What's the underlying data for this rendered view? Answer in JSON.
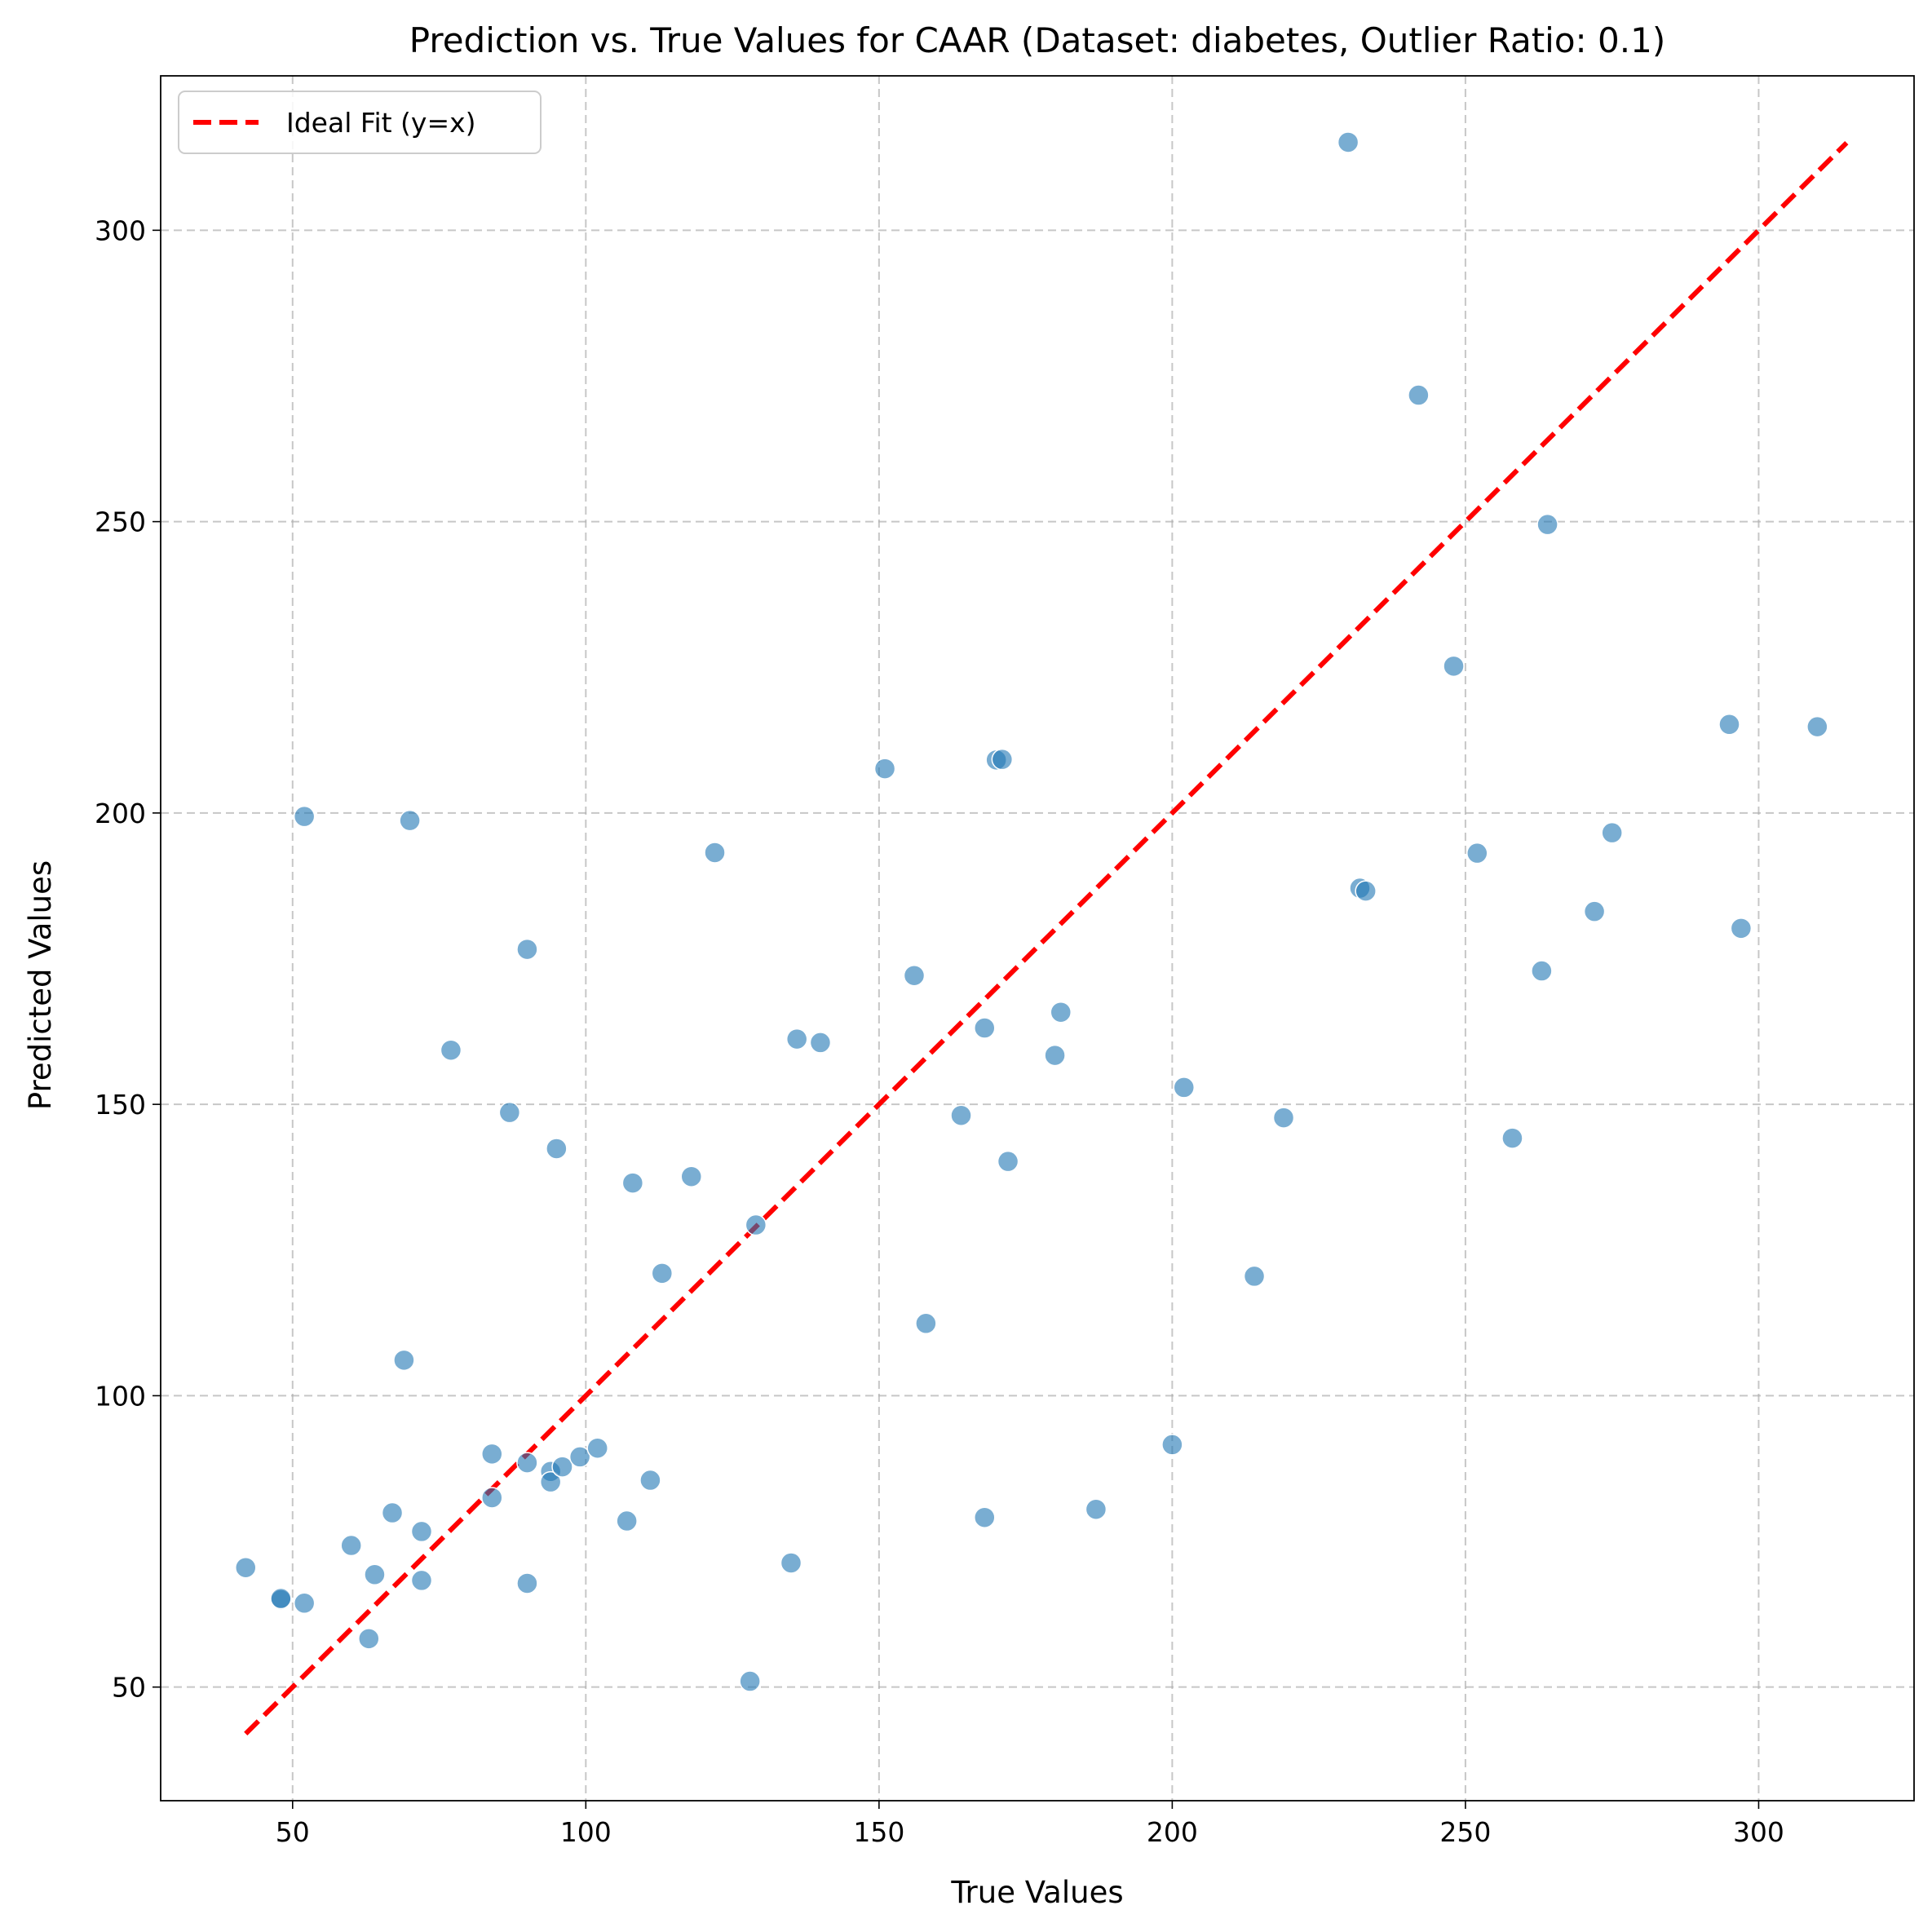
{
  "chart_data": {
    "type": "scatter",
    "title": "Prediction vs. True Values for CAAR (Dataset: diabetes, Outlier Ratio: 0.1)",
    "xlabel": "True Values",
    "ylabel": "Predicted Values",
    "xlim": [
      27.5,
      326.5
    ],
    "ylim": [
      30.5,
      326.5
    ],
    "xticks": [
      50,
      100,
      150,
      200,
      250,
      300
    ],
    "yticks": [
      50,
      100,
      150,
      200,
      250,
      300
    ],
    "grid": true,
    "legend_position": "top-left",
    "legend": [
      {
        "label": "Ideal Fit (y=x)",
        "style": "red-dashed-line"
      }
    ],
    "ideal_line": {
      "name": "Ideal Fit (y=x)",
      "x": [
        42,
        315
      ],
      "y": [
        42,
        315
      ],
      "color": "#ff0000"
    },
    "points": {
      "color": "#1f77b4",
      "x": [
        42,
        48,
        48,
        52,
        52,
        60,
        63,
        64,
        67,
        69,
        70,
        72,
        72,
        77,
        84,
        84,
        87,
        90,
        90,
        90,
        94,
        94,
        95,
        96,
        99,
        102,
        107,
        108,
        111,
        113,
        118,
        122,
        128,
        129,
        135,
        136,
        140,
        151,
        156,
        158,
        164,
        168,
        168,
        170,
        171,
        172,
        180,
        181,
        187,
        200,
        202,
        214,
        219,
        230,
        232,
        233,
        242,
        248,
        252,
        258,
        263,
        264,
        272,
        275,
        295,
        297,
        310
      ],
      "y": [
        70.5,
        65,
        65.2,
        64.4,
        199.4,
        74.3,
        58.3,
        69.3,
        79.9,
        106.1,
        198.7,
        76.7,
        68.3,
        159.3,
        90,
        82.5,
        148.6,
        88.5,
        67.8,
        176.6,
        87,
        85.2,
        142.4,
        87.8,
        89.5,
        91,
        78.5,
        136.5,
        85.5,
        121,
        137.6,
        193.2,
        51,
        129.3,
        71.3,
        161.2,
        160.6,
        207.6,
        172.1,
        112.4,
        148.1,
        163.1,
        79.1,
        209.1,
        209.2,
        140.2,
        158.4,
        165.8,
        80.5,
        91.6,
        152.9,
        120.5,
        147.7,
        315.1,
        187.1,
        186.6,
        271.7,
        225.2,
        193.1,
        144.2,
        172.9,
        249.5,
        183.1,
        196.6,
        215.2,
        180.2,
        214.8
      ]
    }
  }
}
